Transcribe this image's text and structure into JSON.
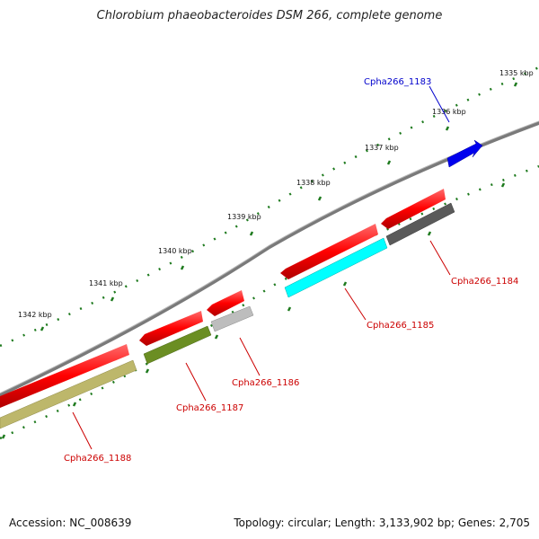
{
  "title": "Chlorobium phaeobacteroides DSM 266, complete genome",
  "footer": {
    "accession": "Accession: NC_008639",
    "summary": "Topology: circular; Length: 3,133,902 bp; Genes: 2,705"
  },
  "colors": {
    "backbone": "#7a7a7a",
    "tick": "#1e7a1e",
    "red_label": "#cc0000",
    "blue_label": "#0000cc"
  },
  "kbp_labels": [
    {
      "label": "1335 kbp"
    },
    {
      "label": "1336 kbp"
    },
    {
      "label": "1337 kbp"
    },
    {
      "label": "1338 kbp"
    },
    {
      "label": "1339 kbp"
    },
    {
      "label": "1340 kbp"
    },
    {
      "label": "1341 kbp"
    },
    {
      "label": "1342 kbp"
    }
  ],
  "genes": [
    {
      "name": "Cpha266_1183",
      "label_color": "#0000cc"
    },
    {
      "name": "Cpha266_1184",
      "label_color": "#cc0000"
    },
    {
      "name": "Cpha266_1185",
      "label_color": "#cc0000"
    },
    {
      "name": "Cpha266_1186",
      "label_color": "#cc0000"
    },
    {
      "name": "Cpha266_1187",
      "label_color": "#cc0000"
    },
    {
      "name": "Cpha266_1188",
      "label_color": "#cc0000"
    }
  ]
}
